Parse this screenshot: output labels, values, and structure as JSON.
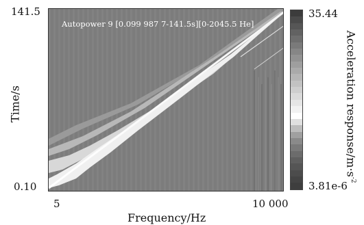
{
  "chart_data": {
    "type": "heatmap",
    "title": "Autopower 9 [0.099 987 7-141.5s][0-2045.5 He]",
    "xlabel": "Frequency/Hz",
    "ylabel": "Time/s",
    "x_ticks": [
      "5",
      "10 000"
    ],
    "y_ticks": [
      "141.5",
      "0.10"
    ],
    "xlim": [
      5,
      10000
    ],
    "ylim": [
      0.1,
      141.5
    ],
    "colorbar": {
      "label_main": "Acceleration response/m·s",
      "label_exponent": "-2",
      "max_label": "35.44",
      "min_label": "3.81e-6",
      "min": 3.81e-06,
      "max": 35.44
    },
    "features": [
      {
        "name": "sweep ridge",
        "start": {
          "x": 5,
          "y": 0.1
        },
        "end": {
          "x": 10000,
          "y": 141.5
        }
      }
    ],
    "colors": {
      "background": "#7a7a7a",
      "ridge": "#ffffff",
      "colorbar_levels": [
        "#3c3c3c",
        "#4a4a4a",
        "#565656",
        "#626262",
        "#6e6e6e",
        "#7a7a7a",
        "#868686",
        "#929292",
        "#9e9e9e",
        "#aaaaaa",
        "#b6b6b6",
        "#c2c2c2",
        "#cecece",
        "#dadada",
        "#e6e6e6",
        "#f2f2f2",
        "#ffffff",
        "#e0e0e0",
        "#bdbdbd",
        "#a0a0a0",
        "#8a8a8a",
        "#7a7a7a",
        "#6c6c6c",
        "#5f5f5f",
        "#555555",
        "#4c4c4c",
        "#444444",
        "#3e3e3e"
      ]
    }
  }
}
